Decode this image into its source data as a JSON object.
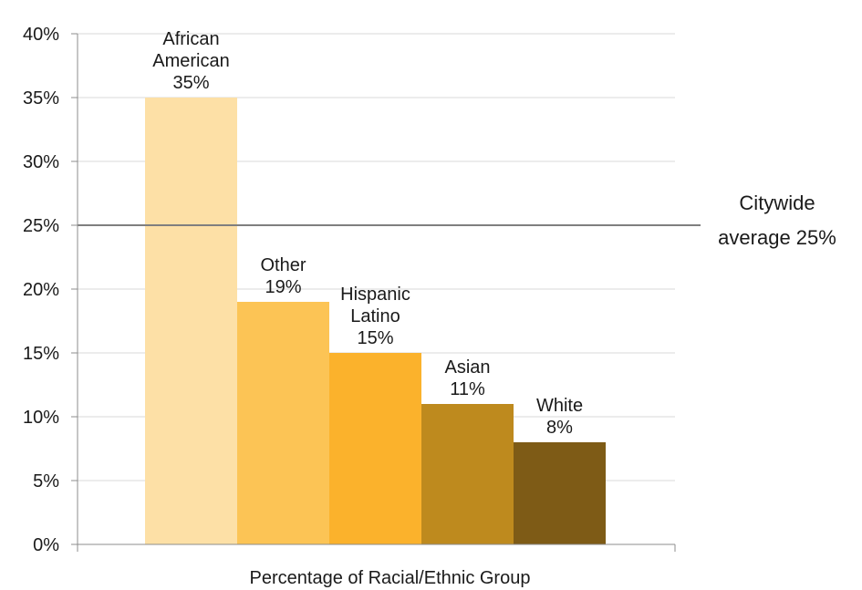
{
  "chart_data": {
    "type": "bar",
    "categories": [
      "African American",
      "Other",
      "Hispanic Latino",
      "Asian",
      "White"
    ],
    "category_label_lines": [
      [
        "African",
        "American"
      ],
      [
        "Other"
      ],
      [
        "Hispanic",
        "Latino"
      ],
      [
        "Asian"
      ],
      [
        "White"
      ]
    ],
    "values": [
      35,
      19,
      15,
      11,
      8
    ],
    "value_labels": [
      "35%",
      "19%",
      "15%",
      "11%",
      "8%"
    ],
    "colors": [
      "#fde0a6",
      "#fcc455",
      "#fbb22c",
      "#be8a1e",
      "#7e5b16"
    ],
    "ylim": [
      0,
      40
    ],
    "yticks": [
      "0%",
      "5%",
      "10%",
      "15%",
      "20%",
      "25%",
      "30%",
      "35%",
      "40%"
    ],
    "xlabel": "Percentage of Racial/Ethnic Group",
    "ylabel": "",
    "title": "",
    "grid": true,
    "reference_line": {
      "value": 25,
      "label_lines": [
        "Citywide",
        "average 25%"
      ],
      "color": "#7f7f7f"
    }
  }
}
